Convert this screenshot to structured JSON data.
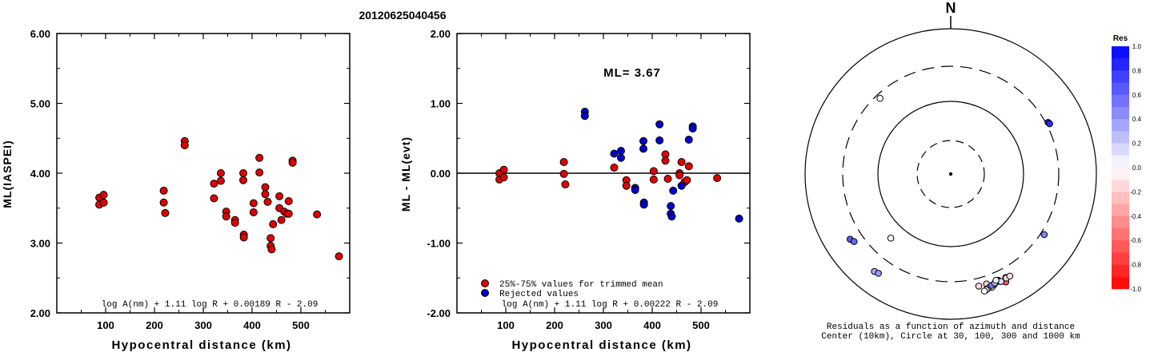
{
  "figure": {
    "title": "20120625040456",
    "north_label": "N",
    "polar_caption_line1": "Residuals as a function of azimuth and distance",
    "polar_caption_line2": "Center (10km), Circle at 30, 100, 300 and 1000 km"
  },
  "chart_data": [
    {
      "type": "scatter",
      "xlabel": "Hypocentral distance (km)",
      "ylabel": "ML(IASPEI)",
      "xlim": [
        0,
        600
      ],
      "ylim": [
        2.0,
        6.0
      ],
      "xticks": [
        "100",
        "200",
        "300",
        "400",
        "500"
      ],
      "yticks": [
        "2.00",
        "3.00",
        "4.00",
        "5.00",
        "6.00"
      ],
      "formula": "log A(nm) + 1.11 log R + 0.00189 R - 2.09",
      "series": [
        {
          "color": "#e00000",
          "points": [
            [
              87,
              3.65
            ],
            [
              87,
              3.55
            ],
            [
              96,
              3.69
            ],
            [
              96,
              3.58
            ],
            [
              219,
              3.75
            ],
            [
              219,
              3.58
            ],
            [
              222,
              3.43
            ],
            [
              262,
              4.46
            ],
            [
              262,
              4.4
            ],
            [
              322,
              3.85
            ],
            [
              322,
              3.64
            ],
            [
              336,
              4.0
            ],
            [
              336,
              3.89
            ],
            [
              347,
              3.45
            ],
            [
              347,
              3.38
            ],
            [
              365,
              3.33
            ],
            [
              365,
              3.29
            ],
            [
              382,
              4.0
            ],
            [
              382,
              3.9
            ],
            [
              383,
              3.12
            ],
            [
              383,
              3.08
            ],
            [
              403,
              3.57
            ],
            [
              403,
              3.44
            ],
            [
              415,
              4.22
            ],
            [
              415,
              4.01
            ],
            [
              427,
              3.8
            ],
            [
              427,
              3.7
            ],
            [
              432,
              3.59
            ],
            [
              438,
              3.07
            ],
            [
              438,
              2.96
            ],
            [
              440,
              2.91
            ],
            [
              443,
              3.27
            ],
            [
              456,
              3.67
            ],
            [
              456,
              3.5
            ],
            [
              460,
              3.33
            ],
            [
              466,
              3.45
            ],
            [
              471,
              3.42
            ],
            [
              475,
              3.6
            ],
            [
              475,
              3.42
            ],
            [
              483,
              4.18
            ],
            [
              483,
              4.15
            ],
            [
              533,
              3.41
            ],
            [
              578,
              2.81
            ]
          ]
        }
      ]
    },
    {
      "type": "scatter",
      "xlabel": "Hypocentral distance (km)",
      "ylabel": "ML - ML(evt)",
      "xlim": [
        0,
        600
      ],
      "ylim": [
        -2.0,
        2.0
      ],
      "xticks": [
        "100",
        "200",
        "300",
        "400",
        "500"
      ],
      "yticks": [
        "-2.00",
        "-1.00",
        "0.00",
        "1.00",
        "2.00"
      ],
      "annotation": "ML= 3.67",
      "reference_line": 0,
      "formula": "log A(nm) + 1.11 log R + 0.00222 R - 2.09",
      "legend": [
        {
          "label": "25%-75% values for trimmed mean",
          "color": "#e00000"
        },
        {
          "label": "Rejected values",
          "color": "#0000cc"
        }
      ],
      "series": [
        {
          "name": "25%-75% values for trimmed mean",
          "color": "#e00000",
          "points": [
            [
              87,
              0.0
            ],
            [
              87,
              -0.09
            ],
            [
              96,
              0.05
            ],
            [
              96,
              -0.06
            ],
            [
              219,
              0.16
            ],
            [
              219,
              -0.01
            ],
            [
              222,
              -0.16
            ],
            [
              322,
              0.08
            ],
            [
              347,
              -0.1
            ],
            [
              347,
              -0.18
            ],
            [
              403,
              0.03
            ],
            [
              403,
              -0.09
            ],
            [
              427,
              0.27
            ],
            [
              427,
              0.18
            ],
            [
              432,
              -0.08
            ],
            [
              456,
              0.0
            ],
            [
              456,
              -0.03
            ],
            [
              460,
              0.16
            ],
            [
              466,
              -0.13
            ],
            [
              471,
              -0.1
            ],
            [
              475,
              0.1
            ],
            [
              533,
              -0.07
            ]
          ]
        },
        {
          "name": "Rejected values",
          "color": "#0000cc",
          "points": [
            [
              262,
              0.88
            ],
            [
              262,
              0.82
            ],
            [
              322,
              0.28
            ],
            [
              336,
              0.32
            ],
            [
              336,
              0.22
            ],
            [
              365,
              -0.21
            ],
            [
              365,
              -0.24
            ],
            [
              382,
              0.46
            ],
            [
              382,
              0.35
            ],
            [
              383,
              -0.42
            ],
            [
              383,
              -0.45
            ],
            [
              415,
              0.7
            ],
            [
              415,
              0.47
            ],
            [
              438,
              -0.47
            ],
            [
              438,
              -0.58
            ],
            [
              440,
              -0.62
            ],
            [
              443,
              -0.25
            ],
            [
              460,
              -0.18
            ],
            [
              475,
              0.48
            ],
            [
              483,
              0.67
            ],
            [
              483,
              0.64
            ],
            [
              578,
              -0.65
            ]
          ]
        }
      ]
    },
    {
      "type": "scatter",
      "subtype": "polar",
      "title": "Residuals as a function of azimuth and distance",
      "caption": "Center (10km), Circle at 30, 100, 300 and 1000 km",
      "rings_km": [
        10,
        30,
        100,
        300,
        1000
      ],
      "colorbar": {
        "title": "Res",
        "ticks": [
          "1.0",
          "0.8",
          "0.6",
          "0.4",
          "0.2",
          "0.0",
          "-0.2",
          "-0.4",
          "-0.6",
          "-0.8",
          "-1.0"
        ],
        "range": [
          -1.0,
          1.0
        ],
        "high_color": "#0000ff",
        "low_color": "#ff0000"
      },
      "points": [
        {
          "az": 317,
          "dist_km": 262,
          "res": 0.0
        },
        {
          "az": 223,
          "dist_km": 160,
          "res": 0.0
        },
        {
          "az": 62,
          "dist_km": 322,
          "res": 0.88
        },
        {
          "az": 63,
          "dist_km": 330,
          "res": 0.82
        },
        {
          "az": 123,
          "dist_km": 335,
          "res": 0.48
        },
        {
          "az": 237,
          "dist_km": 440,
          "res": 0.65
        },
        {
          "az": 235,
          "dist_km": 413,
          "res": 0.6
        },
        {
          "az": 218,
          "dist_km": 500,
          "res": 0.35
        },
        {
          "az": 216,
          "dist_km": 485,
          "res": 0.4
        },
        {
          "az": 166,
          "dist_km": 385,
          "res": -0.15
        },
        {
          "az": 162,
          "dist_km": 385,
          "res": -0.2
        },
        {
          "az": 153,
          "dist_km": 460,
          "res": -0.65
        },
        {
          "az": 152,
          "dist_km": 405,
          "res": -0.3
        },
        {
          "az": 152,
          "dist_km": 415,
          "res": -0.15
        },
        {
          "az": 156,
          "dist_km": 395,
          "res": 0.25
        },
        {
          "az": 156,
          "dist_km": 408,
          "res": 0.35
        },
        {
          "az": 158,
          "dist_km": 416,
          "res": 0.45
        },
        {
          "az": 159,
          "dist_km": 432,
          "res": 0.25
        },
        {
          "az": 161,
          "dist_km": 440,
          "res": 0.45
        },
        {
          "az": 160,
          "dist_km": 450,
          "res": 0.1
        },
        {
          "az": 162,
          "dist_km": 448,
          "res": 0.3
        },
        {
          "az": 163,
          "dist_km": 460,
          "res": 0.05
        },
        {
          "az": 160,
          "dist_km": 425,
          "res": 0.55
        },
        {
          "az": 164,
          "dist_km": 470,
          "res": 0.0
        },
        {
          "az": 158,
          "dist_km": 410,
          "res": 0.2
        },
        {
          "az": 155,
          "dist_km": 425,
          "res": 0.15
        },
        {
          "az": 157,
          "dist_km": 385,
          "res": 0.05
        },
        {
          "az": 150,
          "dist_km": 415,
          "res": -0.1
        }
      ]
    }
  ]
}
